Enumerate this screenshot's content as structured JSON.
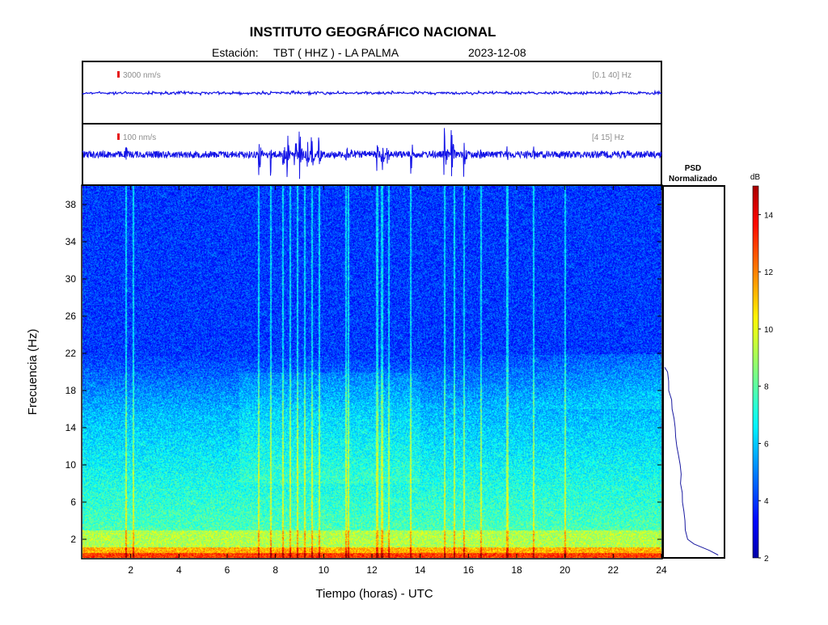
{
  "header": {
    "title": "INSTITUTO GEOGRÁFICO NACIONAL",
    "station_label": "Estación:",
    "station": "TBT ( HHZ ) - LA PALMA",
    "date": "2023-12-08"
  },
  "psd_panel": {
    "title_line1": "PSD",
    "title_line2": "Normalizado"
  },
  "colorbar": {
    "unit": "dB",
    "range": [
      2,
      15
    ],
    "ticks": [
      "2",
      "4",
      "6",
      "8",
      "10",
      "12",
      "14"
    ],
    "colormap": "jet"
  },
  "chart_data": [
    {
      "type": "line",
      "role": "seismogram",
      "scale_label": "3000 nm/s",
      "band_label": "[0.1 40] Hz",
      "color": "#1414e6",
      "scale_bar_color": "#e61919",
      "x_range": [
        0,
        24
      ],
      "noise_level": 0.12
    },
    {
      "type": "line",
      "role": "seismogram",
      "scale_label": "100 nm/s",
      "band_label": "[4 15] Hz",
      "color": "#1414e6",
      "scale_bar_color": "#e61919",
      "x_range": [
        0,
        24
      ],
      "noise_level": 0.12,
      "events_hours": [
        1.8,
        7.3,
        7.8,
        8.3,
        8.5,
        8.8,
        9.0,
        9.3,
        9.5,
        9.8,
        10.9,
        11.1,
        12.2,
        12.4,
        12.6,
        13.6,
        15.0,
        15.3,
        15.8,
        16.5,
        17.6,
        18.7,
        20.0,
        22.2
      ],
      "events_amplitude": [
        0.35,
        1.0,
        0.8,
        0.8,
        0.85,
        0.9,
        1.0,
        0.7,
        0.8,
        0.6,
        0.75,
        0.5,
        0.6,
        0.85,
        0.7,
        0.9,
        1.0,
        0.95,
        0.85,
        0.25,
        0.3,
        0.3,
        0.3,
        0.15
      ]
    },
    {
      "type": "heatmap",
      "role": "spectrogram",
      "x_range": [
        0,
        24
      ],
      "y_range": [
        0,
        40
      ],
      "xlabel": "Tiempo (horas) - UTC",
      "ylabel": "Frecuencia  (Hz)",
      "x_ticks": [
        "2",
        "4",
        "6",
        "8",
        "10",
        "12",
        "14",
        "16",
        "18",
        "20",
        "22",
        "24"
      ],
      "y_ticks": [
        "2",
        "6",
        "10",
        "14",
        "18",
        "22",
        "26",
        "30",
        "34",
        "38"
      ],
      "value_unit": "dB",
      "event_lines_hours": [
        1.8,
        2.1,
        7.3,
        7.8,
        8.3,
        8.6,
        8.9,
        9.2,
        9.5,
        9.8,
        10.9,
        11.0,
        12.2,
        12.4,
        12.7,
        13.6,
        15.0,
        15.4,
        15.8,
        16.5,
        17.6,
        18.7,
        20.0
      ]
    },
    {
      "type": "line",
      "role": "psd_normalized",
      "y_range": [
        0,
        40
      ],
      "x_range": [
        0,
        1
      ],
      "frequency_hz": [
        0.3,
        0.8,
        1.5,
        2.0,
        3.0,
        4.0,
        5.0,
        6.0,
        7.0,
        8.0,
        9.0,
        10.0,
        11.0,
        12.0,
        13.0,
        14.0,
        15.0,
        16.0,
        17.0,
        18.0,
        19.0,
        20.0,
        20.5
      ],
      "psd_value": [
        1.0,
        0.85,
        0.55,
        0.42,
        0.4,
        0.37,
        0.36,
        0.34,
        0.33,
        0.31,
        0.3,
        0.28,
        0.26,
        0.24,
        0.22,
        0.2,
        0.17,
        0.15,
        0.12,
        0.09,
        0.07,
        0.04,
        0.0
      ]
    }
  ]
}
